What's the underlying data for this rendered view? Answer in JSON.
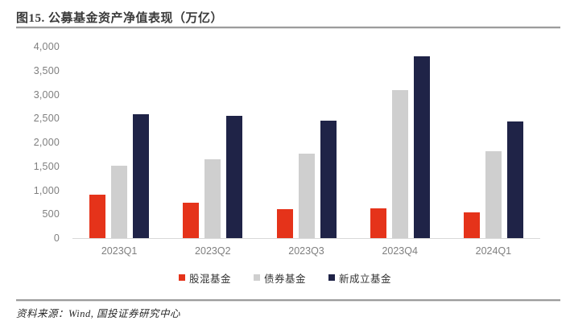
{
  "figure": {
    "title": "图15. 公募基金资产净值表现（万亿）",
    "source": "资料来源：Wind, 国投证券研究中心"
  },
  "chart_data": {
    "type": "bar",
    "title": "图15. 公募基金资产净值表现（万亿）",
    "categories": [
      "2023Q1",
      "2023Q2",
      "2023Q3",
      "2023Q4",
      "2024Q1"
    ],
    "series": [
      {
        "name": "股混基金",
        "color": "#E5331A",
        "values": [
          910,
          740,
          610,
          620,
          530
        ]
      },
      {
        "name": "债券基金",
        "color": "#CFCFCF",
        "values": [
          1520,
          1650,
          1760,
          3100,
          1820
        ]
      },
      {
        "name": "新成立基金",
        "color": "#1F2347",
        "values": [
          2590,
          2550,
          2460,
          3800,
          2440
        ]
      }
    ],
    "ylim": [
      0,
      4000
    ],
    "yticks": [
      {
        "v": 0,
        "label": "0"
      },
      {
        "v": 500,
        "label": "500"
      },
      {
        "v": 1000,
        "label": "1,000"
      },
      {
        "v": 1500,
        "label": "1,500"
      },
      {
        "v": 2000,
        "label": "2,000"
      },
      {
        "v": 2500,
        "label": "2,500"
      },
      {
        "v": 3000,
        "label": "3,000"
      },
      {
        "v": 3500,
        "label": "3,500"
      },
      {
        "v": 4000,
        "label": "4,000"
      }
    ],
    "grid": false,
    "legend_position": "bottom",
    "axis_line_color": "#D9D9D9",
    "tick_label_color": "#7F7F7F"
  }
}
